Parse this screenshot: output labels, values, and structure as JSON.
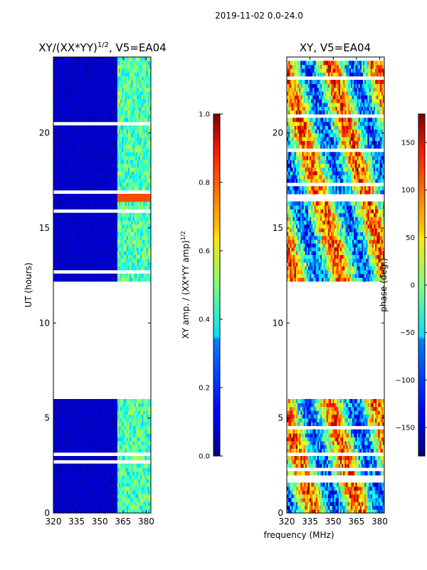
{
  "figure": {
    "suptitle": "2019-11-02 0.0-24.0",
    "shared_xlabel": "frequency (MHz)"
  },
  "chart_data": [
    {
      "type": "heatmap",
      "title": "XY/(XX*YY)^{1/2}, V5=EA04",
      "title_main": "XY/(XX*YY)",
      "title_sup": "1/2",
      "title_tail": ", V5=EA04",
      "xlabel": "frequency (MHz)",
      "ylabel": "UT (hours)",
      "xlim": [
        320,
        383
      ],
      "ylim": [
        0,
        24
      ],
      "xticks": [
        320,
        335,
        350,
        365,
        380
      ],
      "yticks": [
        0,
        5,
        10,
        15,
        20
      ],
      "colorbar": {
        "label": "XY amp. / (XX*YY amp)^{1/2}",
        "label_main": "XY amp. / (XX*YY amp)",
        "label_sup": "1/2",
        "range": [
          0.0,
          1.0
        ],
        "ticks": [
          "0.0",
          "0.2",
          "0.4",
          "0.6",
          "0.8",
          "1.0"
        ],
        "tick_values": [
          0.0,
          0.2,
          0.4,
          0.6,
          0.8,
          1.0
        ]
      },
      "data_hour_blocks": [
        [
          0,
          6.0
        ],
        [
          12.25,
          24.0
        ]
      ],
      "description_values": {
        "low_band_MHz": [
          320,
          361
        ],
        "low_band_level": 0.05,
        "high_band_MHz": [
          361,
          383
        ],
        "high_band_level": 0.45,
        "rfi_hour": 16.7,
        "rfi_level": 0.8
      }
    },
    {
      "type": "heatmap",
      "title": "XY, V5=EA04",
      "xlabel": "frequency (MHz)",
      "ylabel": "",
      "xlim": [
        320,
        383
      ],
      "ylim": [
        0,
        24
      ],
      "xticks": [
        320,
        335,
        350,
        365,
        380
      ],
      "yticks": [
        0,
        5,
        10,
        15,
        20
      ],
      "colorbar": {
        "label": "phase (deg.)",
        "range": [
          -180,
          180
        ],
        "ticks": [
          "−150",
          "−100",
          "−50",
          "0",
          "50",
          "100",
          "150"
        ],
        "tick_values": [
          -150,
          -100,
          -50,
          0,
          50,
          100,
          150
        ]
      },
      "data_hour_blocks": [
        [
          0,
          6.0
        ],
        [
          12.25,
          24.0
        ]
      ]
    }
  ]
}
